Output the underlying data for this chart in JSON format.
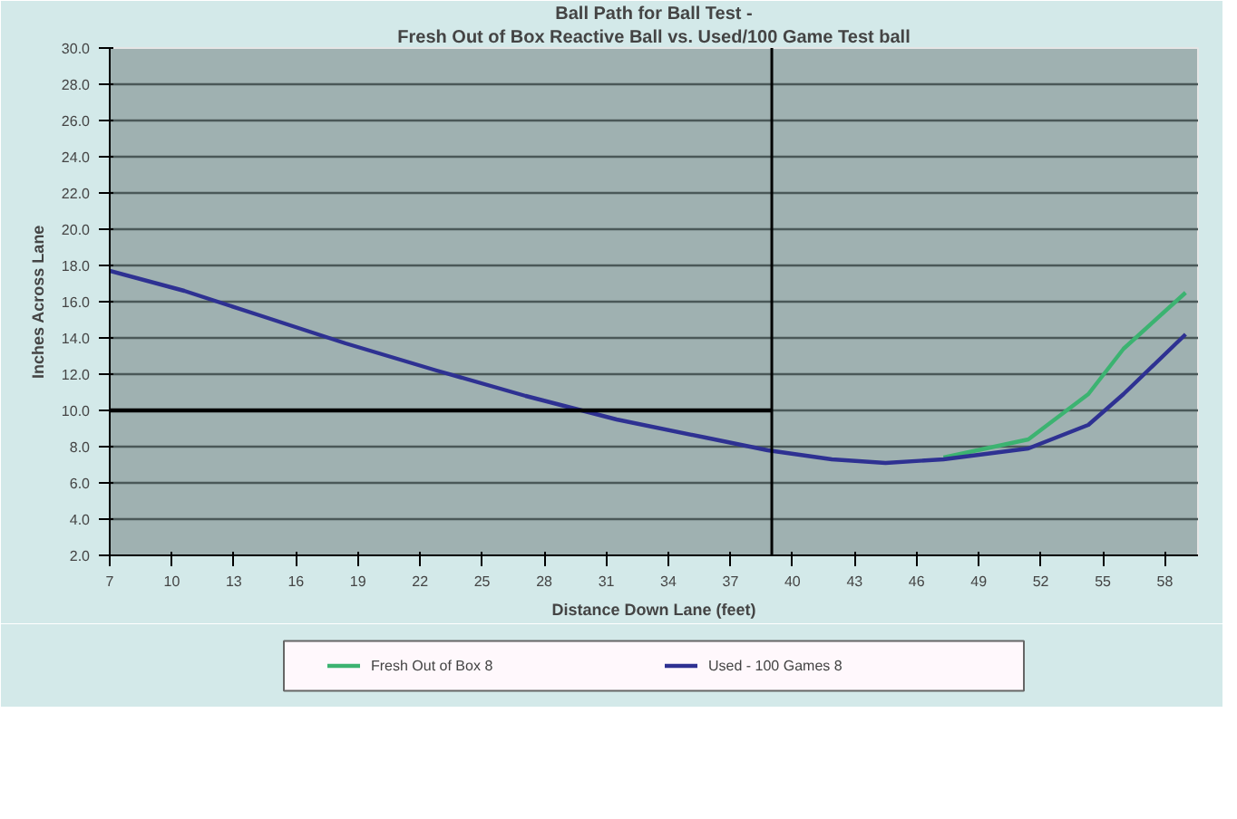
{
  "chart_data": {
    "type": "line",
    "title": "Ball Path for Ball Test -",
    "subtitle": "Fresh Out of Box Reactive Ball vs. Used/100 Game Test ball",
    "xlabel": "Distance Down Lane (feet)",
    "ylabel": "Inches Across Lane",
    "xlim": [
      7,
      59.6
    ],
    "xticks": [
      7,
      10,
      13,
      16,
      19,
      22,
      25,
      28,
      31,
      34,
      37,
      40,
      43,
      46,
      49,
      52,
      55,
      58
    ],
    "ylim": [
      2,
      30
    ],
    "yticks": [
      {
        "value": 2,
        "label": "2.0"
      },
      {
        "value": 4,
        "label": "4.0"
      },
      {
        "value": 6,
        "label": "6.0"
      },
      {
        "value": 8,
        "label": "8.0"
      },
      {
        "value": 10,
        "label": "10.0"
      },
      {
        "value": 12,
        "label": "12.0"
      },
      {
        "value": 14,
        "label": "14.0"
      },
      {
        "value": 16,
        "label": "16.0"
      },
      {
        "value": 18,
        "label": "18.0"
      },
      {
        "value": 20,
        "label": "20.0"
      },
      {
        "value": 22,
        "label": "22.0"
      },
      {
        "value": 24,
        "label": "24.0"
      },
      {
        "value": 26,
        "label": "26.0"
      },
      {
        "value": 28,
        "label": "28.0"
      },
      {
        "value": 30,
        "label": "30.0"
      }
    ],
    "grid": "y",
    "legend": "bottom",
    "series": [
      {
        "name": "Fresh Out of Box 8",
        "color": "#3cb371",
        "x": [
          47.3,
          51.4,
          54.3,
          56.0,
          59.0
        ],
        "values": [
          7.4,
          8.4,
          10.9,
          13.4,
          16.5
        ]
      },
      {
        "name": "Used - 100 Games 8",
        "color": "#2e3192",
        "x": [
          7,
          10.6,
          14.1,
          18.4,
          22.8,
          27.1,
          31.5,
          35.8,
          38.8,
          41.9,
          44.5,
          47.3,
          51.4,
          54.3,
          56.0,
          59.0
        ],
        "values": [
          17.7,
          16.6,
          15.3,
          13.7,
          12.2,
          10.8,
          9.5,
          8.5,
          7.8,
          7.3,
          7.1,
          7.3,
          7.9,
          9.2,
          10.9,
          14.2
        ]
      },
      {
        "color": "#000000",
        "x": [
          7,
          39
        ],
        "values": [
          10,
          10
        ]
      }
    ],
    "ref_lines": [
      {
        "axis": "x",
        "value": 39,
        "color": "#000000"
      }
    ]
  }
}
